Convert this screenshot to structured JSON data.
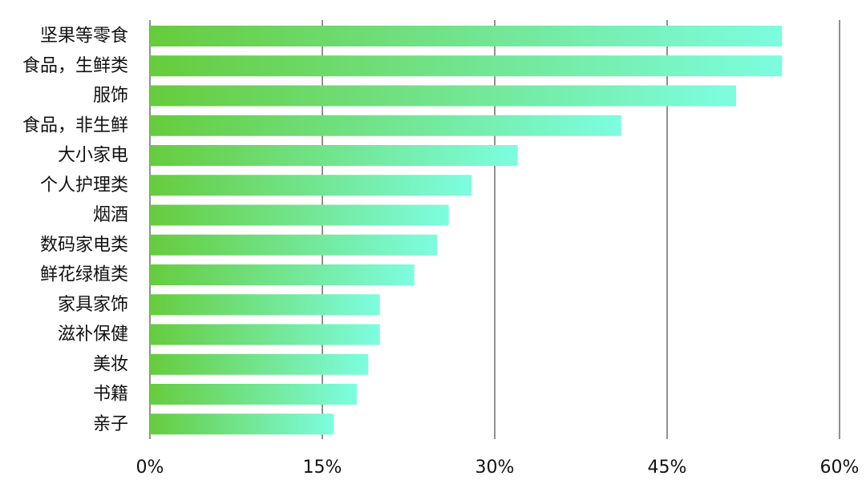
{
  "chart_data": {
    "type": "bar",
    "orientation": "horizontal",
    "title": "",
    "xlabel": "",
    "ylabel": "",
    "categories": [
      "坚果等零食",
      "食品，生鲜类",
      "服饰",
      "食品，非生鲜",
      "大小家电",
      "个人护理类",
      "烟酒",
      "数码家电类",
      "鲜花绿植类",
      "家具家饰",
      "滋补保健",
      "美妆",
      "书籍",
      "亲子"
    ],
    "values": [
      55,
      55,
      51,
      41,
      32,
      28,
      26,
      25,
      23,
      20,
      20,
      19,
      18,
      16
    ],
    "xlim": [
      0,
      60
    ],
    "x_ticks": [
      0,
      15,
      30,
      45,
      60
    ],
    "x_tick_labels": [
      "0%",
      "15%",
      "30%",
      "45%",
      "60%"
    ],
    "grid": "vertical",
    "legend": "none",
    "colors": {
      "bar_gradient_start": "#66cc3d",
      "bar_gradient_end": "#7dfde0",
      "gridline": "#222222",
      "text": "#111111"
    }
  }
}
